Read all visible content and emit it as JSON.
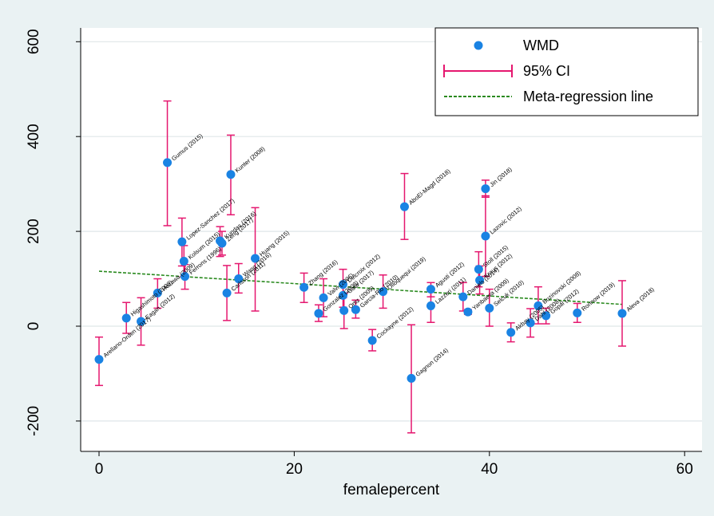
{
  "chart_data": {
    "type": "scatter",
    "title": "",
    "xlabel": "femalepercent",
    "ylabel": "",
    "xlim": [
      -3,
      62
    ],
    "ylim": [
      -255,
      625
    ],
    "xticks": [
      0,
      20,
      40,
      60
    ],
    "yticks": [
      -200,
      0,
      200,
      400,
      600
    ],
    "grid": "horizontal",
    "legend_position": "top-right",
    "legend": {
      "points": "WMD",
      "ci": "95% CI",
      "line": "Meta-regression line"
    },
    "colors": {
      "points": "#1a83e3",
      "ci": "#e5176f",
      "line": "#2a8a1f",
      "background": "#eaf2f3",
      "plot": "#ffffff"
    },
    "regression_line": {
      "x": [
        0,
        53.6
      ],
      "y": [
        116,
        46
      ]
    },
    "studies": [
      {
        "label": "Arellano-Orden (2017)",
        "x": 0,
        "y": -70,
        "lo": -125,
        "hi": -23
      },
      {
        "label": "Higashimoto (2008)",
        "x": 2.8,
        "y": 17,
        "lo": -15,
        "hi": 50
      },
      {
        "label": "Eagan (2012)",
        "x": 4.3,
        "y": 10,
        "lo": -40,
        "hi": 60
      },
      {
        "label": "Hozawa (2009)",
        "x": 6.0,
        "y": 70,
        "lo": 38,
        "hi": 100
      },
      {
        "label": "Gumus (2015)",
        "x": 7.0,
        "y": 345,
        "lo": 212,
        "hi": 475
      },
      {
        "label": "Lopez-Sanchez (2017)",
        "x": 8.5,
        "y": 178,
        "lo": 127,
        "hi": 228
      },
      {
        "label": "Kolsum (2015)",
        "x": 8.7,
        "y": 137,
        "lo": 105,
        "hi": 170
      },
      {
        "label": "Ferrons (1996)",
        "x": 8.8,
        "y": 105,
        "lo": 78,
        "hi": 130
      },
      {
        "label": "Kundas (2016)",
        "x": 12.4,
        "y": 180,
        "lo": 147,
        "hi": 210
      },
      {
        "label": "Zeng (2017)",
        "x": 12.6,
        "y": 175,
        "lo": 150,
        "hi": 200
      },
      {
        "label": "Kunter (2008)",
        "x": 13.5,
        "y": 320,
        "lo": 235,
        "hi": 403
      },
      {
        "label": "Carlsson (2011)",
        "x": 13.1,
        "y": 70,
        "lo": 12,
        "hi": 128
      },
      {
        "label": "Wang (2016)",
        "x": 14.3,
        "y": 100,
        "lo": 70,
        "hi": 132
      },
      {
        "label": "Huang (2015)",
        "x": 16.0,
        "y": 143,
        "lo": 32,
        "hi": 250
      },
      {
        "label": "Zhang (2016)",
        "x": 21.0,
        "y": 82,
        "lo": 50,
        "hi": 112
      },
      {
        "label": "Gonzalez (2008)",
        "x": 22.5,
        "y": 27,
        "lo": 10,
        "hi": 45
      },
      {
        "label": "Valvi (2006)",
        "x": 23.0,
        "y": 60,
        "lo": 20,
        "hi": 100
      },
      {
        "label": "Delcroix (2012)",
        "x": 25.0,
        "y": 88,
        "lo": 60,
        "hi": 120
      },
      {
        "label": "Gaur (2017)",
        "x": 25.0,
        "y": 65,
        "lo": 40,
        "hi": 90
      },
      {
        "label": "Ortiz (2009)",
        "x": 25.1,
        "y": 33,
        "lo": -5,
        "hi": 70
      },
      {
        "label": "Garcia-Rio (2010)",
        "x": 26.3,
        "y": 35,
        "lo": 17,
        "hi": 55
      },
      {
        "label": "Cockayne (2012)",
        "x": 28.0,
        "y": -30,
        "lo": -52,
        "hi": -7
      },
      {
        "label": "Olloquequi (2019)",
        "x": 29.1,
        "y": 73,
        "lo": 38,
        "hi": 108
      },
      {
        "label": "AboEl-Magd (2018)",
        "x": 31.3,
        "y": 252,
        "lo": 183,
        "hi": 322
      },
      {
        "label": "Gagnon (2014)",
        "x": 32.0,
        "y": -110,
        "lo": -225,
        "hi": 3
      },
      {
        "label": "Agusti (2012)",
        "x": 34.0,
        "y": 78,
        "lo": 62,
        "hi": 92
      },
      {
        "label": "Lazzeri (2011)",
        "x": 34.0,
        "y": 43,
        "lo": 8,
        "hi": 80
      },
      {
        "label": "Daniels (2014)",
        "x": 37.3,
        "y": 62,
        "lo": 32,
        "hi": 92
      },
      {
        "label": "Yanbaeva (2009)",
        "x": 37.8,
        "y": 30,
        "lo": 25,
        "hi": 35
      },
      {
        "label": "Stoll (2015)",
        "x": 38.9,
        "y": 120,
        "lo": 83,
        "hi": 157
      },
      {
        "label": "Kraus (2012)",
        "x": 39.0,
        "y": 97,
        "lo": 68,
        "hi": 127
      },
      {
        "label": "Jin (2018)",
        "x": 39.6,
        "y": 290,
        "lo": 272,
        "hi": 308
      },
      {
        "label": "Lazovic (2012)",
        "x": 39.6,
        "y": 190,
        "lo": 105,
        "hi": 275
      },
      {
        "label": "Selcuk (2010)",
        "x": 40.0,
        "y": 38,
        "lo": 0,
        "hi": 78
      },
      {
        "label": "Akbay (2005)",
        "x": 42.2,
        "y": -13,
        "lo": -33,
        "hi": 7
      },
      {
        "label": "Dahl (2008)",
        "x": 44.2,
        "y": 7,
        "lo": -23,
        "hi": 37
      },
      {
        "label": "Bozinovski (2008)",
        "x": 45.0,
        "y": 43,
        "lo": 5,
        "hi": 83
      },
      {
        "label": "Gopal (2012)",
        "x": 45.8,
        "y": 22,
        "lo": 5,
        "hi": 38
      },
      {
        "label": "Ronnow (2019)",
        "x": 49.0,
        "y": 28,
        "lo": 8,
        "hi": 48
      },
      {
        "label": "Aleva (2018)",
        "x": 53.6,
        "y": 27,
        "lo": -42,
        "hi": 96
      }
    ]
  }
}
